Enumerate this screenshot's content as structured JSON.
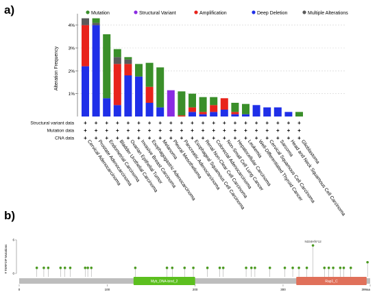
{
  "panel_a_label": "a)",
  "panel_b_label": "b)",
  "chart_data": [
    {
      "type": "bar",
      "stacked": true,
      "ylabel": "Alteration Frequency",
      "ylim": [
        0,
        4.5
      ],
      "yticks": [
        "1%",
        "2%",
        "3%",
        "4%"
      ],
      "ytick_values": [
        1,
        2,
        3,
        4
      ],
      "grid": "dashed horizontal",
      "legend": {
        "placement": "top",
        "entries": [
          {
            "label": "Mutation",
            "color": "#3a8f2a"
          },
          {
            "label": "Structural Variant",
            "color": "#8a2be2"
          },
          {
            "label": "Amplification",
            "color": "#e8231b"
          },
          {
            "label": "Deep Deletion",
            "color": "#1f2fe8"
          },
          {
            "label": "Multiple Alterations",
            "color": "#5a5a5a"
          }
        ]
      },
      "categories": [
        "Cervical Adenocarcinoma",
        "Prostate Adenocarcinoma",
        "Endometrial Carcinoma",
        "Bladder Urothelial Carcinoma",
        "Ovarian Epithelial Tumor",
        "Invasive Breast Carcinoma",
        "Esophagogastric Adenocarcinoma",
        "Melanoma",
        "Pleural Mesothelioma",
        "Pancreatic Adenocarcinoma",
        "Esophageal Squamous Cell Carcinoma",
        "Renal Non-Clear Cell Carcinoma",
        "Colorectal Adenocarcinoma",
        "Non-Small Cell Lung Cancer",
        "Hepatocellular Carcinoma",
        "Leukemia",
        "Well-Differentiated Thyroid Cancer",
        "Cervical Squamous Cell Carcinoma",
        "Sarcoma",
        "Head and Neck Squamous Cell Carcinoma",
        "Glioblastoma"
      ],
      "series": [
        {
          "name": "Deep Deletion",
          "color": "#1f2fe8",
          "values": [
            2.2,
            4.0,
            0.8,
            0.5,
            1.8,
            1.75,
            0.6,
            0.4,
            0,
            0,
            0.2,
            0.1,
            0.2,
            0.3,
            0.1,
            0.1,
            0.5,
            0.4,
            0.4,
            0.2,
            0
          ]
        },
        {
          "name": "Amplification",
          "color": "#e8231b",
          "values": [
            1.8,
            0,
            0,
            1.8,
            0.5,
            0,
            0.7,
            0,
            0,
            0.05,
            0.2,
            0.1,
            0.3,
            0.5,
            0.1,
            0,
            0,
            0,
            0,
            0,
            0
          ]
        },
        {
          "name": "Multiple Alterations",
          "color": "#5a5a5a",
          "values": [
            0.3,
            0.1,
            0,
            0.3,
            0.2,
            0,
            0,
            0,
            0,
            0,
            0,
            0,
            0,
            0,
            0,
            0,
            0,
            0,
            0,
            0,
            0
          ]
        },
        {
          "name": "Structural Variant",
          "color": "#8a2be2",
          "values": [
            0,
            0,
            0,
            0,
            0,
            0,
            0,
            0,
            1.15,
            0,
            0,
            0,
            0,
            0,
            0,
            0,
            0,
            0,
            0,
            0,
            0
          ]
        },
        {
          "name": "Mutation",
          "color": "#3a8f2a",
          "values": [
            0,
            0.2,
            2.8,
            0.35,
            0.1,
            0.55,
            1.05,
            1.75,
            0,
            1.05,
            0.6,
            0.65,
            0.35,
            0,
            0.4,
            0.45,
            0,
            0,
            0,
            0,
            0.2
          ]
        }
      ],
      "row_labels": [
        "Structural variant data",
        "Mutation data",
        "CNA data"
      ],
      "row_marker": "+"
    },
    {
      "type": "scatter",
      "subtype": "lollipop",
      "ylabel": "# TERF2IP Mutations",
      "ylim": [
        0,
        6
      ],
      "yticks": [
        "0",
        "6"
      ],
      "xlim": [
        0,
        399
      ],
      "xticks": [
        "0",
        "100",
        "200",
        "300",
        "399aa"
      ],
      "xtick_values": [
        0,
        100,
        200,
        300,
        399
      ],
      "domains": [
        {
          "name": "Myb_DNA-bind_2",
          "start": 130,
          "end": 200,
          "color": "#5cbf1f"
        },
        {
          "name": "Rap1_C",
          "start": 315,
          "end": 395,
          "color": "#e0705a"
        }
      ],
      "highlight_label": "N334Hfs*12",
      "mutations": [
        {
          "x": 20,
          "count": 1
        },
        {
          "x": 28,
          "count": 1
        },
        {
          "x": 33,
          "count": 1
        },
        {
          "x": 47,
          "count": 1
        },
        {
          "x": 52,
          "count": 1
        },
        {
          "x": 58,
          "count": 1
        },
        {
          "x": 75,
          "count": 1
        },
        {
          "x": 78,
          "count": 1
        },
        {
          "x": 82,
          "count": 1
        },
        {
          "x": 132,
          "count": 1
        },
        {
          "x": 168,
          "count": 1
        },
        {
          "x": 174,
          "count": 1
        },
        {
          "x": 188,
          "count": 1
        },
        {
          "x": 198,
          "count": 1
        },
        {
          "x": 214,
          "count": 1
        },
        {
          "x": 228,
          "count": 1
        },
        {
          "x": 232,
          "count": 1
        },
        {
          "x": 258,
          "count": 1
        },
        {
          "x": 264,
          "count": 1
        },
        {
          "x": 268,
          "count": 1
        },
        {
          "x": 285,
          "count": 1
        },
        {
          "x": 302,
          "count": 1
        },
        {
          "x": 311,
          "count": 1
        },
        {
          "x": 318,
          "count": 1
        },
        {
          "x": 327,
          "count": 1
        },
        {
          "x": 334,
          "count": 5
        },
        {
          "x": 347,
          "count": 1
        },
        {
          "x": 352,
          "count": 1
        },
        {
          "x": 357,
          "count": 1
        },
        {
          "x": 365,
          "count": 1
        },
        {
          "x": 369,
          "count": 1
        },
        {
          "x": 377,
          "count": 1
        },
        {
          "x": 396,
          "count": 2
        }
      ]
    }
  ]
}
